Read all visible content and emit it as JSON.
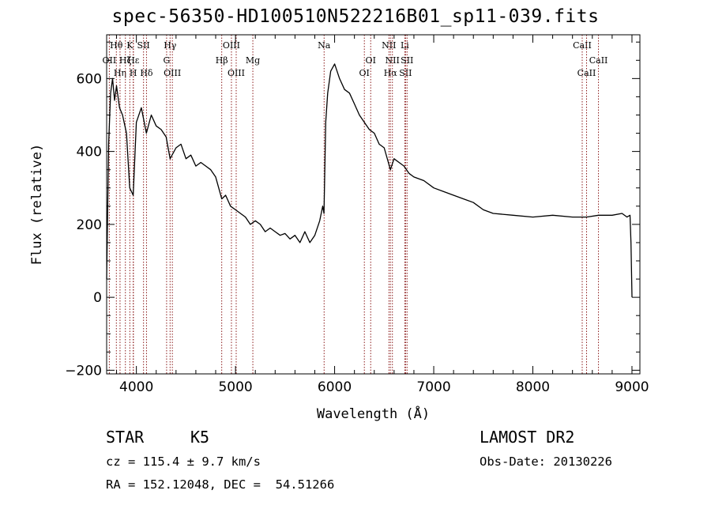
{
  "chart_data": {
    "type": "line",
    "title": "spec-56350-HD100510N522216B01_sp11-039.fits",
    "xlabel": "Wavelength (Å)",
    "ylabel": "Flux (relative)",
    "xlim": [
      3700,
      9080
    ],
    "ylim": [
      -210,
      720
    ],
    "x_ticks": [
      4000,
      5000,
      6000,
      7000,
      8000,
      9000
    ],
    "x_tick_labels": [
      "4000",
      "5000",
      "6000",
      "7000",
      "8000",
      "9000"
    ],
    "y_ticks": [
      -200,
      0,
      200,
      400,
      600
    ],
    "y_tick_labels": [
      "−200",
      "0",
      "200",
      "400",
      "600"
    ],
    "grid": false,
    "series": [
      {
        "x": [
          3700,
          3720,
          3740,
          3760,
          3780,
          3800,
          3830,
          3860,
          3900,
          3933,
          3968,
          4000,
          4050,
          4101,
          4150,
          4200,
          4250,
          4300,
          4340,
          4400,
          4450,
          4500,
          4550,
          4600,
          4650,
          4700,
          4750,
          4800,
          4861,
          4900,
          4950,
          5000,
          5050,
          5100,
          5150,
          5200,
          5250,
          5300,
          5350,
          5400,
          5450,
          5500,
          5550,
          5600,
          5650,
          5700,
          5750,
          5800,
          5850,
          5880,
          5893,
          5910,
          5930,
          5960,
          6000,
          6050,
          6100,
          6150,
          6200,
          6250,
          6300,
          6350,
          6400,
          6450,
          6500,
          6563,
          6600,
          6650,
          6700,
          6750,
          6800,
          6900,
          7000,
          7100,
          7200,
          7300,
          7400,
          7500,
          7600,
          7800,
          8000,
          8200,
          8400,
          8542,
          8662,
          8800,
          8900,
          8950,
          8980,
          8990,
          9000
        ],
        "y": [
          50,
          420,
          560,
          600,
          540,
          580,
          520,
          500,
          450,
          300,
          280,
          480,
          520,
          450,
          500,
          470,
          460,
          440,
          380,
          410,
          420,
          380,
          390,
          360,
          370,
          360,
          350,
          330,
          270,
          280,
          250,
          240,
          230,
          220,
          200,
          210,
          200,
          180,
          190,
          180,
          170,
          175,
          160,
          170,
          150,
          180,
          150,
          170,
          210,
          250,
          230,
          480,
          560,
          620,
          640,
          600,
          570,
          560,
          530,
          500,
          480,
          460,
          450,
          420,
          410,
          350,
          380,
          370,
          360,
          340,
          330,
          320,
          300,
          290,
          280,
          270,
          260,
          240,
          230,
          225,
          220,
          225,
          220,
          220,
          225,
          225,
          230,
          220,
          225,
          150,
          0
        ]
      }
    ],
    "lines": [
      {
        "label": "OII",
        "x": 3727
      },
      {
        "label": "Hθ",
        "x": 3798
      },
      {
        "label": "Hη",
        "x": 3835
      },
      {
        "label": "Hζ",
        "x": 3889
      },
      {
        "label": "K",
        "x": 3934
      },
      {
        "label": "H",
        "x": 3968
      },
      {
        "label": "Hε",
        "x": 3970
      },
      {
        "label": "SII",
        "x": 4072
      },
      {
        "label": "Hδ",
        "x": 4102
      },
      {
        "label": "G",
        "x": 4305
      },
      {
        "label": "Hγ",
        "x": 4340
      },
      {
        "label": "OIII",
        "x": 4363
      },
      {
        "label": "Hβ",
        "x": 4861
      },
      {
        "label": "OIII",
        "x": 4959
      },
      {
        "label": "OIII",
        "x": 5007
      },
      {
        "label": "Mg",
        "x": 5175
      },
      {
        "label": "Na",
        "x": 5894
      },
      {
        "label": "OI",
        "x": 6300
      },
      {
        "label": "OI",
        "x": 6364
      },
      {
        "label": "NII",
        "x": 6548
      },
      {
        "label": "Hα",
        "x": 6563
      },
      {
        "label": "NII",
        "x": 6583
      },
      {
        "label": "Li",
        "x": 6708
      },
      {
        "label": "SII",
        "x": 6716
      },
      {
        "label": "SII",
        "x": 6731
      },
      {
        "label": "CaII",
        "x": 8498
      },
      {
        "label": "CaII",
        "x": 8542
      },
      {
        "label": "CaII",
        "x": 8662
      }
    ]
  },
  "info": {
    "object_class": "STAR",
    "subclass": "K5",
    "survey": "LAMOST DR2",
    "cz": "cz = 115.4 ± 9.7 km/s",
    "obs_date": "Obs-Date: 20130226",
    "coords": "RA = 152.12048, DEC =  54.51266"
  },
  "colors": {
    "spectrum": "#000000",
    "line_marker": "#8b1a1a"
  }
}
